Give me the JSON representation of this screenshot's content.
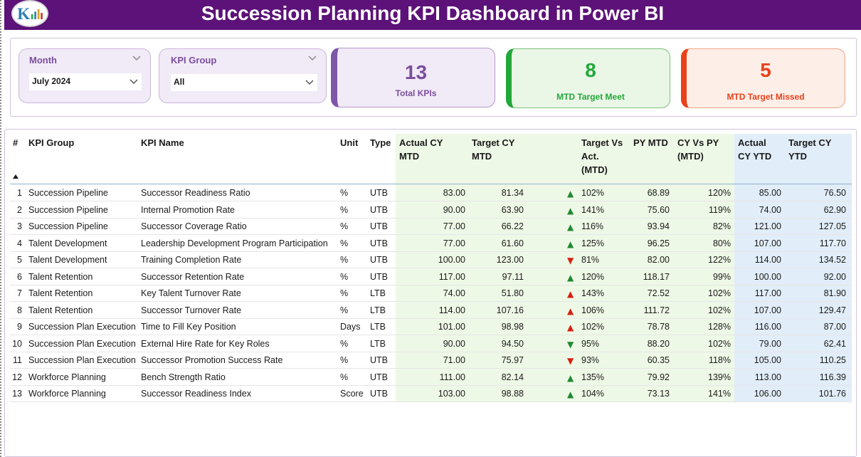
{
  "header": {
    "title": "Succession Planning KPI Dashboard in Power BI"
  },
  "colors": {
    "header_bg": "#5c1278",
    "accent_purple": "#7a4e9c",
    "green": "#22a83a",
    "red": "#e8421a",
    "up_good": "#1f8a30",
    "down_bad": "#d71f0f"
  },
  "slicers": {
    "month": {
      "label": "Month",
      "value": "July 2024"
    },
    "kpi_group": {
      "label": "KPI Group",
      "value": "All"
    }
  },
  "cards": {
    "total": {
      "value": "13",
      "label": "Total KPIs"
    },
    "met": {
      "value": "8",
      "label": "MTD Target Meet"
    },
    "missed": {
      "value": "5",
      "label": "MTD Target Missed"
    }
  },
  "table": {
    "headers": {
      "num": "#",
      "group": "KPI Group",
      "name": "KPI Name",
      "unit": "Unit",
      "type": "Type",
      "actual_mtd_1": "Actual CY",
      "actual_mtd_2": "MTD",
      "target_mtd_1": "Target CY",
      "target_mtd_2": "MTD",
      "tva_1": "Target Vs",
      "tva_2": "Act.",
      "tva_3": "(MTD)",
      "py_mtd": "PY MTD",
      "cyvpy_1": "CY Vs PY",
      "cyvpy_2": "(MTD)",
      "actual_ytd_1": "Actual",
      "actual_ytd_2": "CY YTD",
      "target_ytd_1": "Target CY",
      "target_ytd_2": "YTD"
    },
    "rows": [
      {
        "num": "1",
        "group": "Succession Pipeline",
        "name": "Successor Readiness Ratio",
        "unit": "%",
        "type": "UTB",
        "actual_mtd": "83.00",
        "target_mtd": "81.34",
        "arrow": "▲",
        "arrow_color": "#1f8a30",
        "tva": "102%",
        "py_mtd": "68.89",
        "cyvpy": "120%",
        "actual_ytd": "85.00",
        "target_ytd": "76.50"
      },
      {
        "num": "2",
        "group": "Succession Pipeline",
        "name": "Internal Promotion Rate",
        "unit": "%",
        "type": "UTB",
        "actual_mtd": "90.00",
        "target_mtd": "63.90",
        "arrow": "▲",
        "arrow_color": "#1f8a30",
        "tva": "141%",
        "py_mtd": "75.60",
        "cyvpy": "119%",
        "actual_ytd": "74.00",
        "target_ytd": "62.90"
      },
      {
        "num": "3",
        "group": "Succession Pipeline",
        "name": "Successor Coverage Ratio",
        "unit": "%",
        "type": "UTB",
        "actual_mtd": "77.00",
        "target_mtd": "66.22",
        "arrow": "▲",
        "arrow_color": "#1f8a30",
        "tva": "116%",
        "py_mtd": "93.94",
        "cyvpy": "82%",
        "actual_ytd": "121.00",
        "target_ytd": "127.05"
      },
      {
        "num": "4",
        "group": "Talent Development",
        "name": "Leadership Development Program Participation",
        "unit": "%",
        "type": "UTB",
        "actual_mtd": "77.00",
        "target_mtd": "61.60",
        "arrow": "▲",
        "arrow_color": "#1f8a30",
        "tva": "125%",
        "py_mtd": "96.25",
        "cyvpy": "80%",
        "actual_ytd": "107.00",
        "target_ytd": "117.70"
      },
      {
        "num": "5",
        "group": "Talent Development",
        "name": "Training Completion Rate",
        "unit": "%",
        "type": "UTB",
        "actual_mtd": "100.00",
        "target_mtd": "123.00",
        "arrow": "▼",
        "arrow_color": "#d71f0f",
        "tva": "81%",
        "py_mtd": "82.00",
        "cyvpy": "122%",
        "actual_ytd": "114.00",
        "target_ytd": "134.52"
      },
      {
        "num": "6",
        "group": "Talent Retention",
        "name": "Successor Retention Rate",
        "unit": "%",
        "type": "UTB",
        "actual_mtd": "117.00",
        "target_mtd": "97.11",
        "arrow": "▲",
        "arrow_color": "#1f8a30",
        "tva": "120%",
        "py_mtd": "118.17",
        "cyvpy": "99%",
        "actual_ytd": "100.00",
        "target_ytd": "92.00"
      },
      {
        "num": "7",
        "group": "Talent Retention",
        "name": "Key Talent Turnover Rate",
        "unit": "%",
        "type": "LTB",
        "actual_mtd": "74.00",
        "target_mtd": "51.80",
        "arrow": "▲",
        "arrow_color": "#d71f0f",
        "tva": "143%",
        "py_mtd": "72.52",
        "cyvpy": "102%",
        "actual_ytd": "117.00",
        "target_ytd": "81.90"
      },
      {
        "num": "8",
        "group": "Talent Retention",
        "name": "Successor Turnover Rate",
        "unit": "%",
        "type": "LTB",
        "actual_mtd": "114.00",
        "target_mtd": "107.16",
        "arrow": "▲",
        "arrow_color": "#d71f0f",
        "tva": "106%",
        "py_mtd": "111.72",
        "cyvpy": "102%",
        "actual_ytd": "107.00",
        "target_ytd": "129.47"
      },
      {
        "num": "9",
        "group": "Succession Plan Execution",
        "name": "Time to Fill Key Position",
        "unit": "Days",
        "type": "LTB",
        "actual_mtd": "101.00",
        "target_mtd": "98.98",
        "arrow": "▲",
        "arrow_color": "#d71f0f",
        "tva": "102%",
        "py_mtd": "78.78",
        "cyvpy": "128%",
        "actual_ytd": "116.00",
        "target_ytd": "87.00"
      },
      {
        "num": "10",
        "group": "Succession Plan Execution",
        "name": "External Hire Rate for Key Roles",
        "unit": "%",
        "type": "LTB",
        "actual_mtd": "90.00",
        "target_mtd": "94.50",
        "arrow": "▼",
        "arrow_color": "#1f8a30",
        "tva": "95%",
        "py_mtd": "88.20",
        "cyvpy": "102%",
        "actual_ytd": "79.00",
        "target_ytd": "62.41"
      },
      {
        "num": "11",
        "group": "Succession Plan Execution",
        "name": "Successor Promotion Success Rate",
        "unit": "%",
        "type": "UTB",
        "actual_mtd": "71.00",
        "target_mtd": "75.97",
        "arrow": "▼",
        "arrow_color": "#d71f0f",
        "tva": "93%",
        "py_mtd": "60.35",
        "cyvpy": "118%",
        "actual_ytd": "105.00",
        "target_ytd": "110.25"
      },
      {
        "num": "12",
        "group": "Workforce Planning",
        "name": "Bench Strength Ratio",
        "unit": "%",
        "type": "UTB",
        "actual_mtd": "111.00",
        "target_mtd": "82.14",
        "arrow": "▲",
        "arrow_color": "#1f8a30",
        "tva": "135%",
        "py_mtd": "79.92",
        "cyvpy": "139%",
        "actual_ytd": "113.00",
        "target_ytd": "116.39"
      },
      {
        "num": "13",
        "group": "Workforce Planning",
        "name": "Successor Readiness Index",
        "unit": "Score",
        "type": "UTB",
        "actual_mtd": "103.00",
        "target_mtd": "98.88",
        "arrow": "▲",
        "arrow_color": "#1f8a30",
        "tva": "104%",
        "py_mtd": "73.13",
        "cyvpy": "141%",
        "actual_ytd": "106.00",
        "target_ytd": "101.76"
      }
    ]
  }
}
